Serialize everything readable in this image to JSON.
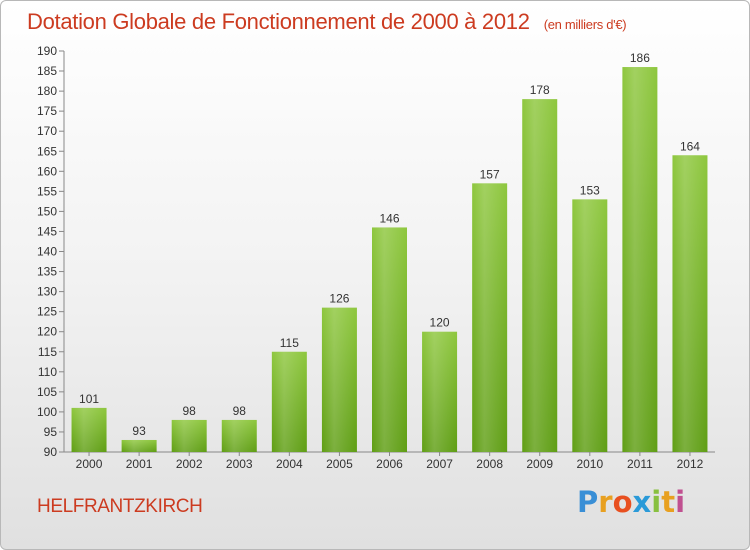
{
  "header": {
    "title": "Dotation Globale de Fonctionnement de 2000 à 2012",
    "unit": "(en milliers d'€)"
  },
  "footer": {
    "commune": "HELFRANTZKIRCH",
    "logo_letters": [
      "P",
      "r",
      "o",
      "x",
      "i",
      "t",
      "i"
    ],
    "logo_colors": [
      "#3a8fd6",
      "#e8a020",
      "#e85020",
      "#2a9ad8",
      "#88c040",
      "#e8a020",
      "#c05090"
    ]
  },
  "chart_data": {
    "type": "bar",
    "categories": [
      "2000",
      "2001",
      "2002",
      "2003",
      "2004",
      "2005",
      "2006",
      "2007",
      "2008",
      "2009",
      "2010",
      "2011",
      "2012"
    ],
    "values": [
      101,
      93,
      98,
      98,
      115,
      126,
      146,
      120,
      157,
      178,
      153,
      186,
      164
    ],
    "ylim": [
      90,
      190
    ],
    "ytick_step": 5,
    "grid": false,
    "bar_color": "#8ec73e",
    "bar_color_dark": "#5f9e14"
  }
}
